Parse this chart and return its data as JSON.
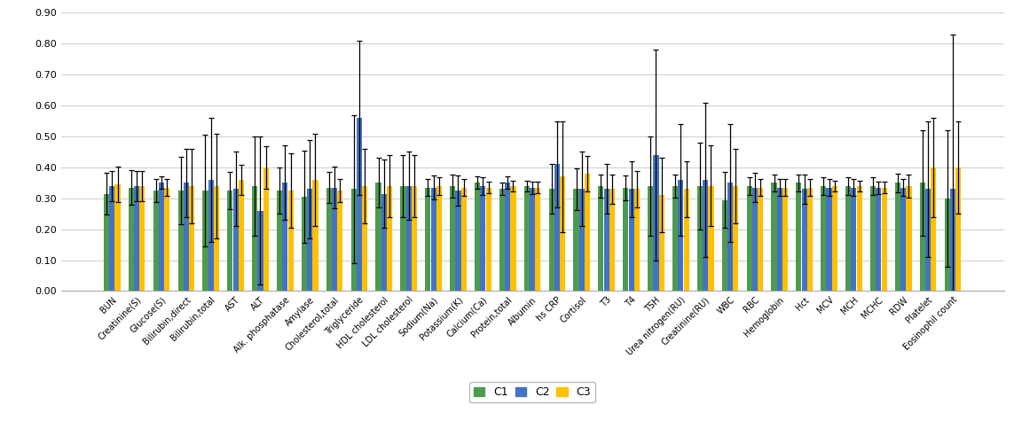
{
  "categories": [
    "BUN",
    "Creatinine(S)",
    "Glucose(S)",
    "Bilirubin,direct",
    "Bilirubin,total",
    "AST",
    "ALT",
    "Alk. phosphatase",
    "Amylase",
    "Cholesterol,total",
    "Triglyceride",
    "HDL cholesterol",
    "LDL cholesterol",
    "Sodium(Na)",
    "Potassium(K)",
    "Calcium(Ca)",
    "Protein,total",
    "Albumin",
    "hs CRP",
    "Cortisol",
    "T3",
    "T4",
    "TSH",
    "Urea nitrogen(RU)",
    "Creatinine(RU)",
    "WBC",
    "RBC",
    "Hemoglobin",
    "Hct",
    "MCV",
    "MCH",
    "MCHC",
    "RDW",
    "Platelet",
    "Eosinophil count"
  ],
  "C1_mean": [
    0.315,
    0.335,
    0.325,
    0.325,
    0.325,
    0.325,
    0.34,
    0.325,
    0.305,
    0.335,
    0.33,
    0.35,
    0.34,
    0.335,
    0.34,
    0.35,
    0.33,
    0.34,
    0.33,
    0.33,
    0.34,
    0.335,
    0.34,
    0.34,
    0.34,
    0.295,
    0.34,
    0.35,
    0.35,
    0.34,
    0.34,
    0.34,
    0.35,
    0.35,
    0.3
  ],
  "C2_mean": [
    0.34,
    0.34,
    0.35,
    0.35,
    0.36,
    0.33,
    0.26,
    0.35,
    0.33,
    0.335,
    0.56,
    0.315,
    0.34,
    0.335,
    0.325,
    0.34,
    0.35,
    0.335,
    0.41,
    0.33,
    0.33,
    0.33,
    0.44,
    0.36,
    0.36,
    0.35,
    0.335,
    0.335,
    0.33,
    0.335,
    0.335,
    0.335,
    0.335,
    0.33,
    0.33
  ],
  "C3_mean": [
    0.345,
    0.34,
    0.335,
    0.34,
    0.34,
    0.36,
    0.4,
    0.325,
    0.36,
    0.325,
    0.34,
    0.34,
    0.34,
    0.34,
    0.335,
    0.335,
    0.34,
    0.335,
    0.37,
    0.38,
    0.33,
    0.33,
    0.31,
    0.33,
    0.34,
    0.34,
    0.335,
    0.335,
    0.335,
    0.34,
    0.34,
    0.335,
    0.34,
    0.4,
    0.4
  ],
  "C1_err": [
    0.068,
    0.055,
    0.038,
    0.11,
    0.18,
    0.06,
    0.16,
    0.075,
    0.15,
    0.05,
    0.24,
    0.08,
    0.1,
    0.028,
    0.038,
    0.02,
    0.02,
    0.018,
    0.08,
    0.068,
    0.038,
    0.04,
    0.16,
    0.038,
    0.14,
    0.09,
    0.028,
    0.028,
    0.028,
    0.028,
    0.028,
    0.028,
    0.03,
    0.17,
    0.22
  ],
  "C2_err": [
    0.048,
    0.048,
    0.02,
    0.11,
    0.2,
    0.12,
    0.24,
    0.12,
    0.16,
    0.068,
    0.25,
    0.11,
    0.11,
    0.038,
    0.048,
    0.028,
    0.02,
    0.02,
    0.14,
    0.12,
    0.08,
    0.09,
    0.34,
    0.18,
    0.25,
    0.19,
    0.048,
    0.028,
    0.048,
    0.028,
    0.028,
    0.02,
    0.028,
    0.22,
    0.5
  ],
  "C3_err": [
    0.058,
    0.048,
    0.028,
    0.12,
    0.17,
    0.048,
    0.068,
    0.12,
    0.15,
    0.038,
    0.12,
    0.1,
    0.1,
    0.028,
    0.028,
    0.018,
    0.018,
    0.018,
    0.18,
    0.058,
    0.048,
    0.058,
    0.12,
    0.09,
    0.13,
    0.12,
    0.028,
    0.028,
    0.028,
    0.018,
    0.018,
    0.018,
    0.038,
    0.16,
    0.15
  ],
  "colors": {
    "C1": "#4e9a51",
    "C2": "#4472c4",
    "C3": "#ffc000"
  },
  "ylim": [
    0.0,
    0.9
  ],
  "yticks": [
    0.0,
    0.1,
    0.2,
    0.3,
    0.4,
    0.5,
    0.6,
    0.7,
    0.8,
    0.9
  ],
  "legend_labels": [
    "C1",
    "C2",
    "C3"
  ]
}
